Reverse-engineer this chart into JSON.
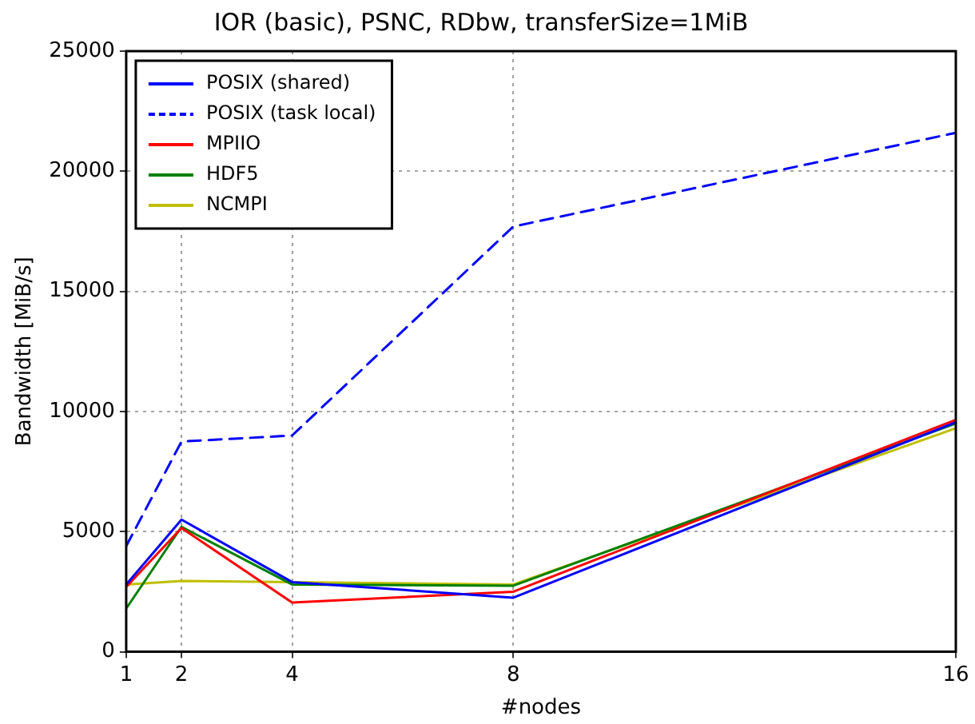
{
  "chart_data": {
    "type": "line",
    "title": "IOR (basic), PSNC, RDbw, transferSize=1MiB",
    "xlabel": "#nodes",
    "ylabel": "Bandwidth [MiB/s]",
    "x": [
      1,
      2,
      4,
      8,
      16
    ],
    "series": [
      {
        "name": "POSIX (shared)",
        "color": "#0000ff",
        "values": [
          2800,
          5500,
          2900,
          2250,
          9550
        ]
      },
      {
        "name": "POSIX (task local)",
        "color": "#0000ff",
        "line_style": "dashed",
        "values": [
          4400,
          8750,
          9000,
          17700,
          21600
        ]
      },
      {
        "name": "MPIIO",
        "color": "#ff0000",
        "values": [
          2700,
          5150,
          2050,
          2500,
          9650
        ]
      },
      {
        "name": "HDF5",
        "color": "#008000",
        "values": [
          1800,
          5200,
          2800,
          2750,
          9500
        ]
      },
      {
        "name": "NCMPI",
        "color": "#bfbf00",
        "values": [
          2800,
          2950,
          2900,
          2800,
          9300
        ]
      }
    ],
    "xlim": [
      1,
      16
    ],
    "xticks": [
      1,
      2,
      4,
      8,
      16
    ],
    "ylim": [
      0,
      25000
    ],
    "yticks": [
      0,
      5000,
      10000,
      15000,
      20000,
      25000
    ],
    "grid": true,
    "legend": "top left",
    "marker": "none",
    "line_style": "solid"
  }
}
